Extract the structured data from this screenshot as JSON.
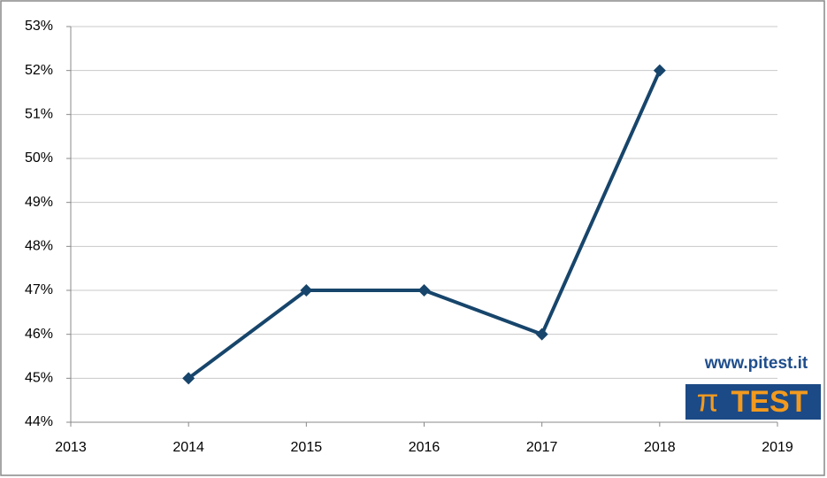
{
  "chart_data": {
    "type": "line",
    "x": [
      2014,
      2015,
      2016,
      2017,
      2018
    ],
    "series": [
      {
        "color": "#17456b",
        "values": [
          45,
          47,
          47,
          46,
          52
        ]
      }
    ],
    "xlim": [
      2013,
      2019
    ],
    "xticks": [
      2013,
      2014,
      2015,
      2016,
      2017,
      2018,
      2019
    ],
    "ylim": [
      44,
      53
    ],
    "yticks": [
      {
        "value": 44,
        "label": "44%"
      },
      {
        "value": 45,
        "label": "45%"
      },
      {
        "value": 46,
        "label": "46%"
      },
      {
        "value": 47,
        "label": "47%"
      },
      {
        "value": 48,
        "label": "48%"
      },
      {
        "value": 49,
        "label": "49%"
      },
      {
        "value": 50,
        "label": "50%"
      },
      {
        "value": 51,
        "label": "51%"
      },
      {
        "value": 52,
        "label": "52%"
      },
      {
        "value": 53,
        "label": "53%"
      }
    ],
    "grid": true,
    "watermark": {
      "url": "www.pitest.it",
      "logo_symbol": "π",
      "logo_text": "TEST"
    }
  }
}
